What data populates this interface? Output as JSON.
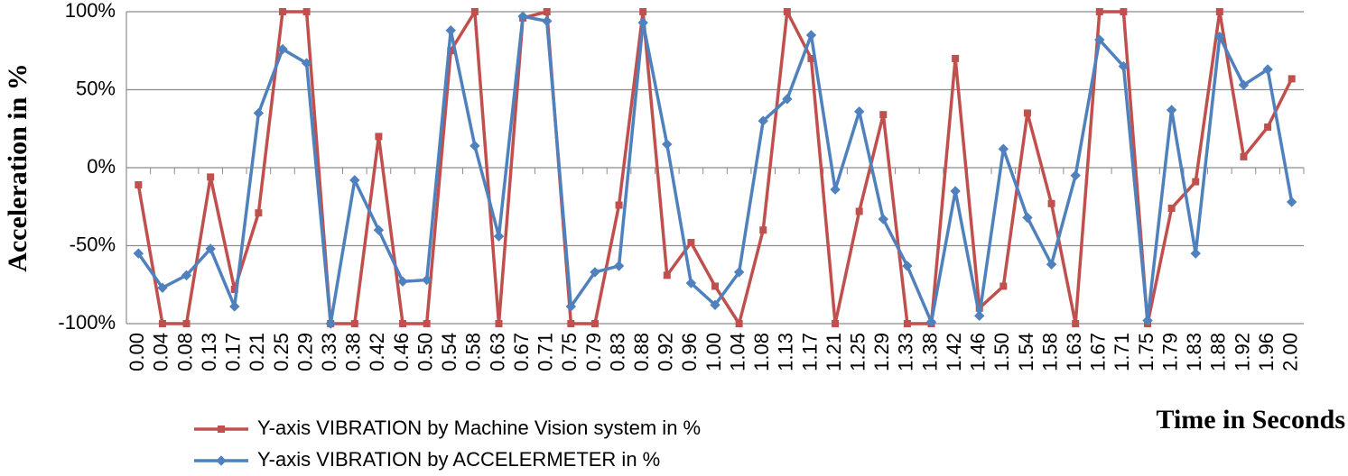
{
  "chart_data": {
    "type": "line",
    "y_label": "Acceleration in %",
    "x_label": "Time in Seconds",
    "categories": [
      "0.00",
      "0.04",
      "0.08",
      "0.13",
      "0.17",
      "0.21",
      "0.25",
      "0.29",
      "0.33",
      "0.38",
      "0.42",
      "0.46",
      "0.50",
      "0.54",
      "0.58",
      "0.63",
      "0.67",
      "0.71",
      "0.75",
      "0.79",
      "0.83",
      "0.88",
      "0.92",
      "0.96",
      "1.00",
      "1.04",
      "1.08",
      "1.13",
      "1.17",
      "1.21",
      "1.25",
      "1.29",
      "1.33",
      "1.38",
      "1.42",
      "1.46",
      "1.50",
      "1.54",
      "1.58",
      "1.63",
      "1.67",
      "1.71",
      "1.75",
      "1.79",
      "1.83",
      "1.88",
      "1.92",
      "1.96",
      "2.00"
    ],
    "series": [
      {
        "name": "Y-axis VIBRATION by Machine Vision system in  %",
        "color": "#c0504d",
        "marker": "square",
        "values": [
          -11,
          -100,
          -100,
          -6,
          -78,
          -29,
          100,
          100,
          -100,
          -100,
          20,
          -100,
          -100,
          75,
          100,
          -100,
          96,
          100,
          -100,
          -100,
          -24,
          100,
          -69,
          -48,
          -76,
          -100,
          -40,
          100,
          70,
          -100,
          -28,
          34,
          -100,
          -100,
          70,
          -90,
          -76,
          35,
          -23,
          -100,
          100,
          100,
          -100,
          -26,
          -9,
          100,
          7,
          26,
          57
        ]
      },
      {
        "name": "Y-axis VIBRATION by ACCELERMETER in %",
        "color": "#4f81bd",
        "marker": "diamond",
        "values": [
          -55,
          -77,
          -69,
          -52,
          -89,
          35,
          76,
          67,
          -100,
          -8,
          -40,
          -73,
          -72,
          88,
          14,
          -44,
          97,
          94,
          -89,
          -67,
          -63,
          93,
          15,
          -74,
          -88,
          -67,
          30,
          44,
          85,
          -14,
          36,
          -33,
          -63,
          -99,
          -15,
          -95,
          12,
          -32,
          -62,
          -5,
          82,
          65,
          -98,
          37,
          -55,
          84,
          53,
          63,
          -22
        ]
      }
    ],
    "ylim": [
      -100,
      100
    ],
    "yticks": [
      {
        "value": -100,
        "label": "-100%"
      },
      {
        "value": -50,
        "label": "-50%"
      },
      {
        "value": 0,
        "label": "0%"
      },
      {
        "value": 50,
        "label": "50%"
      },
      {
        "value": 100,
        "label": "100%"
      }
    ],
    "grid": true
  }
}
